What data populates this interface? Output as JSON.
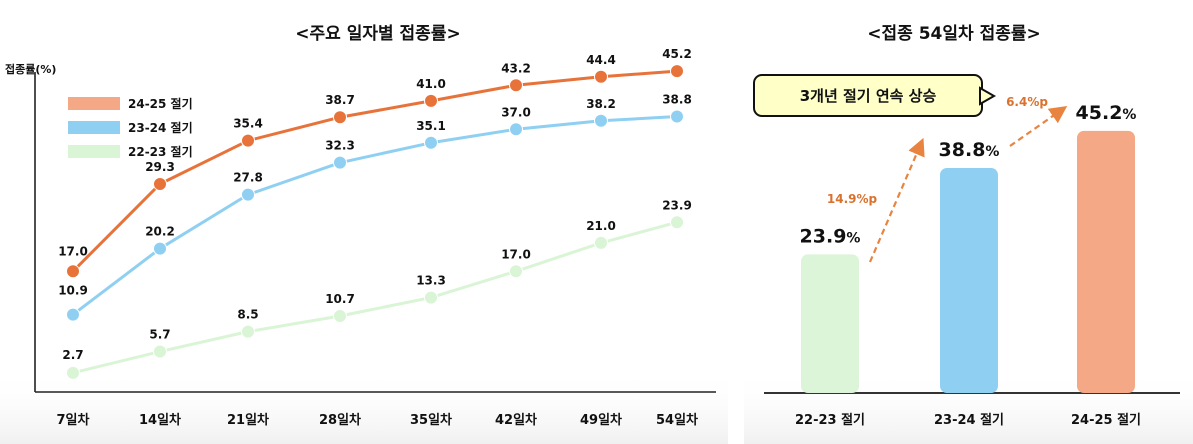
{
  "colors": {
    "s2425": "#e8733a",
    "s2425_bar": "#f5a886",
    "s2324": "#8fd0f2",
    "s2223": "#d9f5d5",
    "s2223_bar": "#dcf5d8",
    "arrow": "#e8843f",
    "callout_bg": "#ffffc8"
  },
  "chart_data": [
    {
      "type": "line",
      "title": "<주요 일자별 접종률>",
      "ylabel": "접종률(%)",
      "xlabel": "",
      "categories": [
        "7일차",
        "14일차",
        "21일차",
        "28일차",
        "35일차",
        "42일차",
        "49일차",
        "54일차"
      ],
      "ylim": [
        0,
        50
      ],
      "legend_position": "top-left",
      "grid": false,
      "series": [
        {
          "name": "24-25 절기",
          "values": [
            17.0,
            29.3,
            35.4,
            38.7,
            41.0,
            43.2,
            44.4,
            45.2
          ],
          "labels": [
            "17.0",
            "29.3",
            "35.4",
            "38.7",
            "41.0",
            "43.2",
            "44.4",
            "45.2"
          ]
        },
        {
          "name": "23-24 절기",
          "values": [
            10.9,
            20.2,
            27.8,
            32.3,
            35.1,
            37.0,
            38.2,
            38.8
          ],
          "labels": [
            "10.9",
            "20.2",
            "27.8",
            "32.3",
            "35.1",
            "37.0",
            "38.2",
            "38.8"
          ]
        },
        {
          "name": "22-23 절기",
          "values": [
            2.7,
            5.7,
            8.5,
            10.7,
            13.3,
            17.0,
            21.0,
            23.9
          ],
          "labels": [
            "2.7",
            "5.7",
            "8.5",
            "10.7",
            "13.3",
            "17.0",
            "21.0",
            "23.9"
          ]
        }
      ]
    },
    {
      "type": "bar",
      "title": "<접종 54일차 접종률>",
      "categories": [
        "22-23 절기",
        "23-24 절기",
        "24-25 절기"
      ],
      "values": [
        23.9,
        38.8,
        45.2
      ],
      "value_labels": [
        "23.9",
        "38.8",
        "45.2"
      ],
      "unit": "%",
      "ylim": [
        0,
        50
      ],
      "annotations": {
        "diff1": "14.9%p",
        "diff2": "6.4%p",
        "callout": "3개년 절기 연속 상승"
      }
    }
  ]
}
